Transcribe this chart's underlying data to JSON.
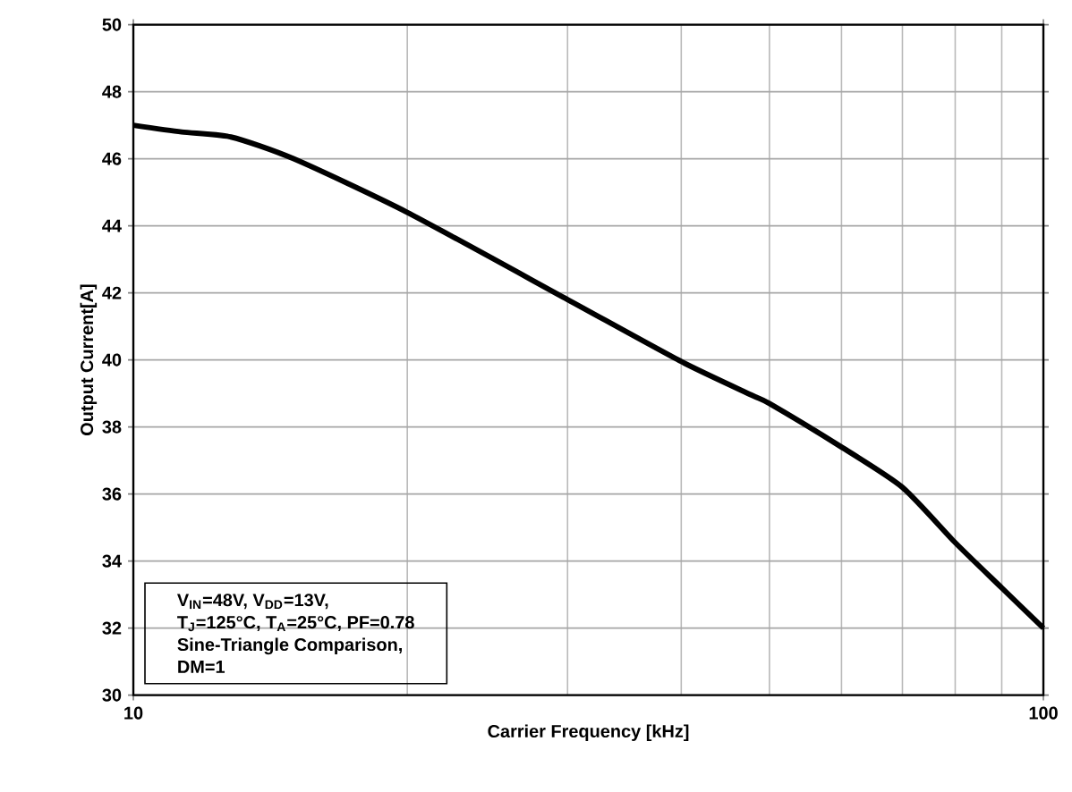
{
  "chart_data": {
    "type": "line",
    "xlabel": "Carrier Frequency [kHz]",
    "ylabel": "Output Current[A]",
    "log": "x",
    "xlim": [
      10,
      100
    ],
    "ylim": [
      30,
      50
    ],
    "xticks": [
      10,
      100
    ],
    "yticks": [
      30,
      32,
      34,
      36,
      38,
      40,
      42,
      44,
      46,
      48,
      50
    ],
    "grid": true,
    "marker": "none",
    "line_style": "solid",
    "series": [
      {
        "color": "#000000",
        "x": [
          10,
          11.3,
          12.8,
          15,
          20,
          30,
          40,
          47.8,
          50,
          60,
          70,
          80,
          90,
          100
        ],
        "values": [
          47.0,
          46.8,
          46.65,
          46.0,
          44.4,
          41.8,
          39.95,
          38.95,
          38.7,
          37.4,
          36.2,
          34.55,
          33.2,
          32.0
        ]
      }
    ],
    "annotations": [
      "V$_{IN}$=48V, V$_{DD}$=13V,",
      "T$_{J}$=125°C, T$_{A}$=25°C, PF=0.78",
      "Sine-Triangle Comparison,",
      "DM=1"
    ]
  }
}
